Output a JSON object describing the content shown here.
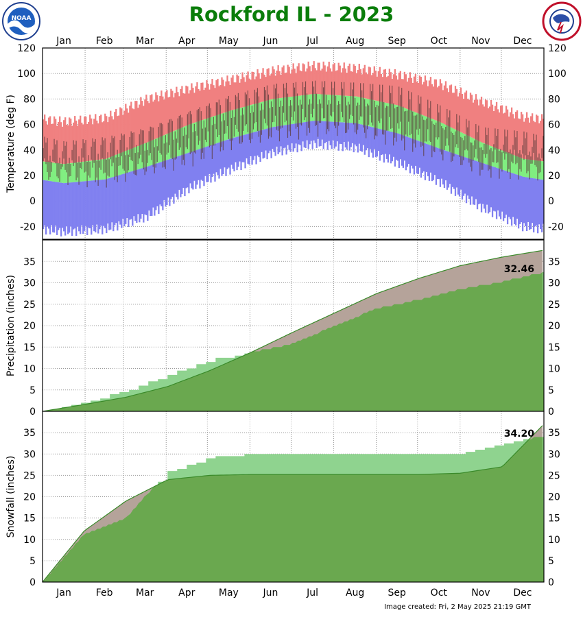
{
  "title": "Rockford IL - 2023",
  "footer": "Image created: Fri, 2 May 2025 21:19 GMT",
  "logos": {
    "left": "NOAA",
    "right": "NATIONAL WEATHER SERVICE"
  },
  "colors": {
    "title": "#0a7d0a",
    "record_high": "#f08080",
    "normal_band": "#80ee80",
    "record_low": "#8080f0",
    "observed_bar": "#5a3a3a",
    "observed_accum": "#6aa84f",
    "normal_accum": "#b5a39a",
    "accum_above_normal": "#8fd38f"
  },
  "chart_data": [
    {
      "type": "bar",
      "name": "temperature",
      "ylabel": "Temperature (deg F)",
      "ylim": [
        -30,
        120
      ],
      "yticks": [
        -20,
        0,
        20,
        40,
        60,
        80,
        100,
        120
      ],
      "xticks": [
        "Jan",
        "Feb",
        "Mar",
        "Apr",
        "May",
        "Jun",
        "Jul",
        "Aug",
        "Sep",
        "Oct",
        "Nov",
        "Dec"
      ],
      "grid": true,
      "monthly": {
        "record_high": [
          62,
          65,
          80,
          88,
          95,
          102,
          106,
          104,
          99,
          92,
          78,
          66
        ],
        "normal_high": [
          29,
          33,
          46,
          60,
          71,
          80,
          84,
          82,
          75,
          62,
          46,
          33
        ],
        "normal_low": [
          14,
          17,
          27,
          38,
          49,
          58,
          63,
          61,
          53,
          41,
          30,
          19
        ],
        "record_low": [
          -24,
          -22,
          -12,
          10,
          25,
          38,
          45,
          42,
          30,
          15,
          -5,
          -20
        ],
        "observed_high": [
          38,
          42,
          50,
          63,
          75,
          83,
          85,
          83,
          80,
          65,
          48,
          45
        ],
        "observed_low": [
          23,
          22,
          29,
          38,
          50,
          57,
          62,
          60,
          53,
          42,
          29,
          28
        ]
      }
    },
    {
      "type": "area",
      "name": "precipitation",
      "ylabel": "Precipitation (inches)",
      "ylim": [
        0,
        40
      ],
      "yticks": [
        0,
        5,
        10,
        15,
        20,
        25,
        30,
        35
      ],
      "xticks": [
        "Jan",
        "Feb",
        "Mar",
        "Apr",
        "May",
        "Jun",
        "Jul",
        "Aug",
        "Sep",
        "Oct",
        "Nov",
        "Dec"
      ],
      "grid": true,
      "annotation": "32.46",
      "month_end": {
        "observed": [
          2.2,
          4.8,
          8.5,
          12.0,
          13.8,
          15.8,
          20.0,
          24.0,
          26.0,
          28.5,
          30.2,
          32.46
        ],
        "normal": [
          1.6,
          3.3,
          5.8,
          9.5,
          13.8,
          18.5,
          23.0,
          27.5,
          31.0,
          34.0,
          36.0,
          37.6
        ]
      }
    },
    {
      "type": "area",
      "name": "snowfall",
      "ylabel": "Snowfall (inches)",
      "ylim": [
        0,
        40
      ],
      "yticks": [
        0,
        5,
        10,
        15,
        20,
        25,
        30,
        35
      ],
      "xticks": [
        "Jan",
        "Feb",
        "Mar",
        "Apr",
        "May",
        "Jun",
        "Jul",
        "Aug",
        "Sep",
        "Oct",
        "Nov",
        "Dec"
      ],
      "grid": true,
      "annotation": "34.20",
      "month_end": {
        "observed": [
          11.2,
          15.0,
          26.0,
          29.2,
          30.0,
          30.0,
          30.0,
          30.0,
          30.0,
          30.0,
          32.4,
          34.2
        ],
        "normal": [
          12.0,
          19.0,
          24.0,
          25.0,
          25.2,
          25.2,
          25.2,
          25.2,
          25.2,
          25.5,
          27.0,
          37.0
        ]
      }
    }
  ]
}
